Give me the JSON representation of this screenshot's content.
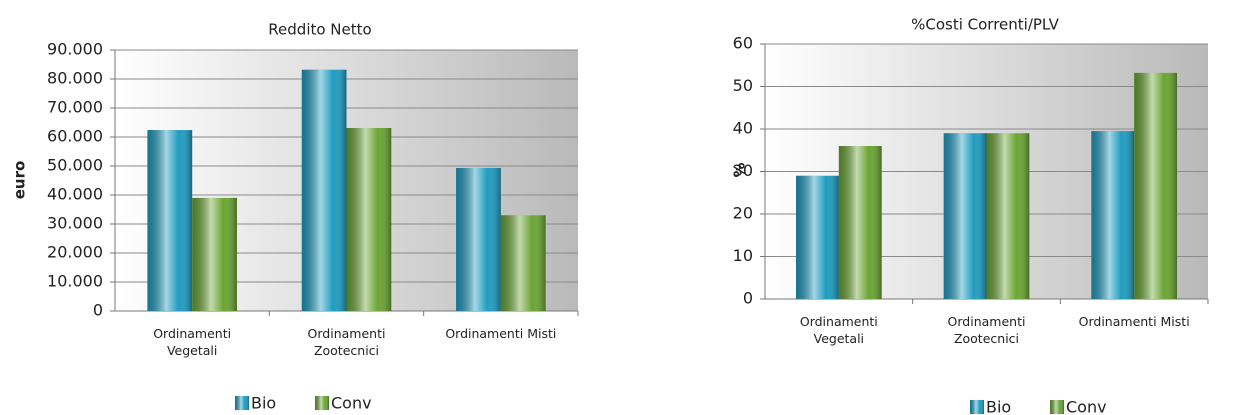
{
  "chart_data": [
    {
      "type": "bar",
      "title": "Reddito Netto",
      "y_label": "euro",
      "categories": [
        "Ordinamenti Vegetali",
        "Ordinamenti Zootecnici",
        "Ordinamenti Misti"
      ],
      "series": [
        {
          "name": "Bio",
          "color": "#1e9cc0",
          "values": [
            62400,
            83200,
            49300
          ]
        },
        {
          "name": "Conv",
          "color": "#6aa533",
          "values": [
            39000,
            63100,
            33000
          ]
        }
      ],
      "ylim": [
        0,
        90000
      ],
      "yticks": [
        0,
        {
          "value": 10000,
          "label": "10.000"
        },
        {
          "value": 20000,
          "label": "20.000"
        },
        {
          "value": 30000,
          "label": "30.000"
        },
        {
          "value": 40000,
          "label": "40.000"
        },
        {
          "value": 50000,
          "label": "50.000"
        },
        {
          "value": 60000,
          "label": "60.000"
        },
        {
          "value": 70000,
          "label": "70.000"
        },
        {
          "value": 80000,
          "label": "80.000"
        },
        {
          "value": 90000,
          "label": "90.000"
        }
      ],
      "grid": true,
      "legend": "bottom"
    },
    {
      "type": "bar",
      "title": "%Costi Correnti/PLV",
      "y_label": "%",
      "categories": [
        "Ordinamenti Vegetali",
        "Ordinamenti Zootecnici",
        "Ordinamenti Misti"
      ],
      "series": [
        {
          "name": "Bio",
          "color": "#1e9cc0",
          "values": [
            29,
            39,
            39.5
          ]
        },
        {
          "name": "Conv",
          "color": "#6aa533",
          "values": [
            36,
            39,
            53.2
          ]
        }
      ],
      "ylim": [
        0,
        60
      ],
      "yticks": [
        0,
        10,
        20,
        30,
        40,
        50,
        60
      ],
      "grid": true,
      "legend": "bottom"
    }
  ]
}
